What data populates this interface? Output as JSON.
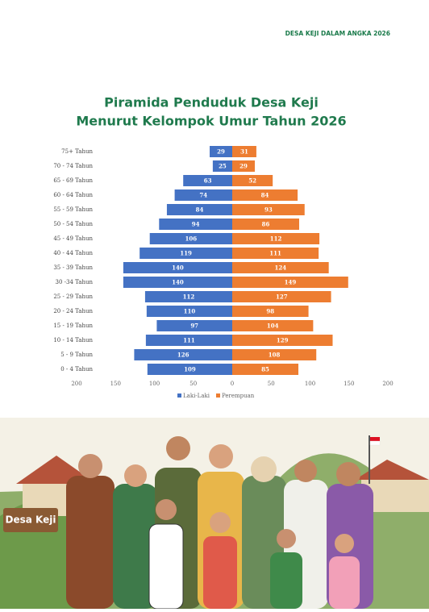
{
  "header": {
    "title": "DESA KEJI DALAM ANGKA 2026"
  },
  "chart_data": {
    "type": "pyramid",
    "title": "Piramida Penduduk Desa Keji",
    "subtitle": "Menurut Kelompok Umur Tahun 2026",
    "categories": [
      "75+ Tahun",
      "70 - 74 Tahun",
      "65 - 69 Tahun",
      "60 - 64 Tahun",
      "55 - 59 Tahun",
      "50 - 54 Tahun",
      "45 - 49 Tahun",
      "40 - 44 Tahun",
      "35 - 39 Tahun",
      "30 -34 Tahun",
      "25 - 29 Tahun",
      "20 - 24 Tahun",
      "15 - 19 Tahun",
      "10 - 14 Tahun",
      "5 - 9 Tahun",
      "0 - 4 Tahun"
    ],
    "series": [
      {
        "name": "Laki-Laki",
        "color": "#4472c4",
        "values": [
          29,
          25,
          63,
          74,
          84,
          94,
          106,
          119,
          140,
          140,
          112,
          110,
          97,
          111,
          126,
          109
        ]
      },
      {
        "name": "Perempuan",
        "color": "#ed7d31",
        "values": [
          31,
          29,
          52,
          84,
          93,
          86,
          112,
          111,
          124,
          149,
          127,
          98,
          104,
          129,
          108,
          85
        ]
      }
    ],
    "xlim": [
      -200,
      200
    ],
    "xticks": [
      {
        "value": -200,
        "label": "200"
      },
      {
        "value": -150,
        "label": "150"
      },
      {
        "value": -100,
        "label": "100"
      },
      {
        "value": -50,
        "label": "50"
      },
      0,
      50,
      100,
      150,
      200
    ],
    "legend": "bottom"
  },
  "illustration": {
    "sign": "Desa Keji"
  }
}
